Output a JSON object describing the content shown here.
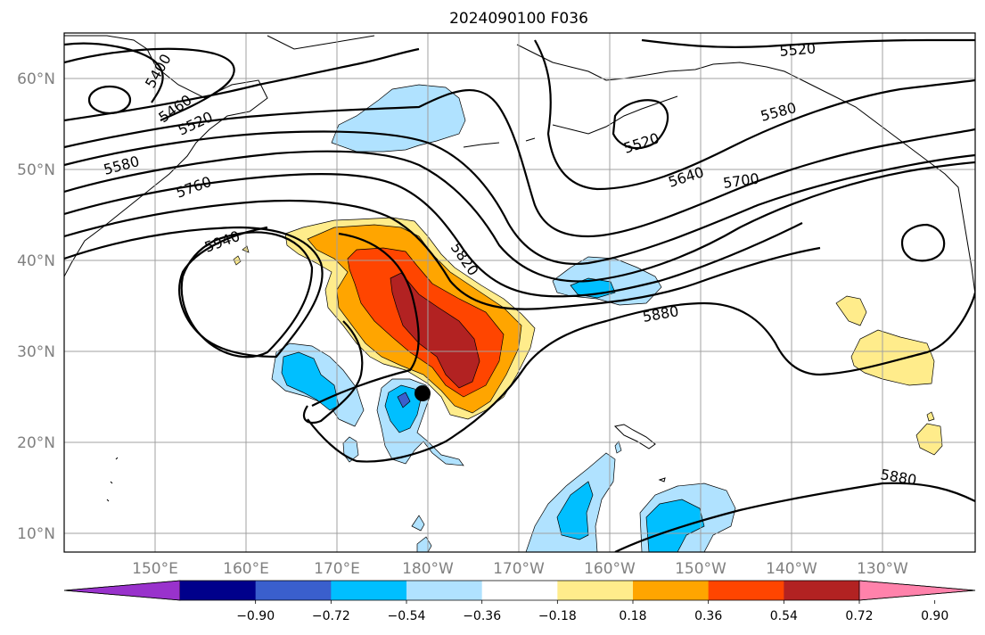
{
  "title": "2024090100 F036",
  "map": {
    "lon_labels": [
      "150°E",
      "160°E",
      "170°E",
      "180°W",
      "170°W",
      "160°W",
      "150°W",
      "140°W",
      "130°W"
    ],
    "lat_labels": [
      "10°N",
      "20°N",
      "30°N",
      "40°N",
      "50°N",
      "60°N"
    ],
    "contour_labels": [
      "5400",
      "5460",
      "5520",
      "5580",
      "5760",
      "5940",
      "5820",
      "5520",
      "5580",
      "5640",
      "5700",
      "5880",
      "5520",
      "5880"
    ],
    "storm_marker": "black-dot"
  },
  "colorbar": {
    "ticks": [
      "−0.90",
      "−0.72",
      "−0.54",
      "−0.36",
      "−0.18",
      "0.18",
      "0.36",
      "0.54",
      "0.72",
      "0.90"
    ],
    "colors": [
      "#9932CC",
      "#00008B",
      "#3A5FCD",
      "#00BFFF",
      "#B0E2FF",
      "#FFFFFF",
      "#FFEC8B",
      "#FFA500",
      "#FF4500",
      "#B22222",
      "#FF82AB"
    ]
  },
  "colors": {
    "light_blue": "#B0E2FF",
    "blue": "#00BFFF",
    "royal": "#3A5FCD",
    "yellow": "#FFEC8B",
    "orange": "#FFA500",
    "red_orange": "#FF4500",
    "dark_red": "#B22222"
  }
}
